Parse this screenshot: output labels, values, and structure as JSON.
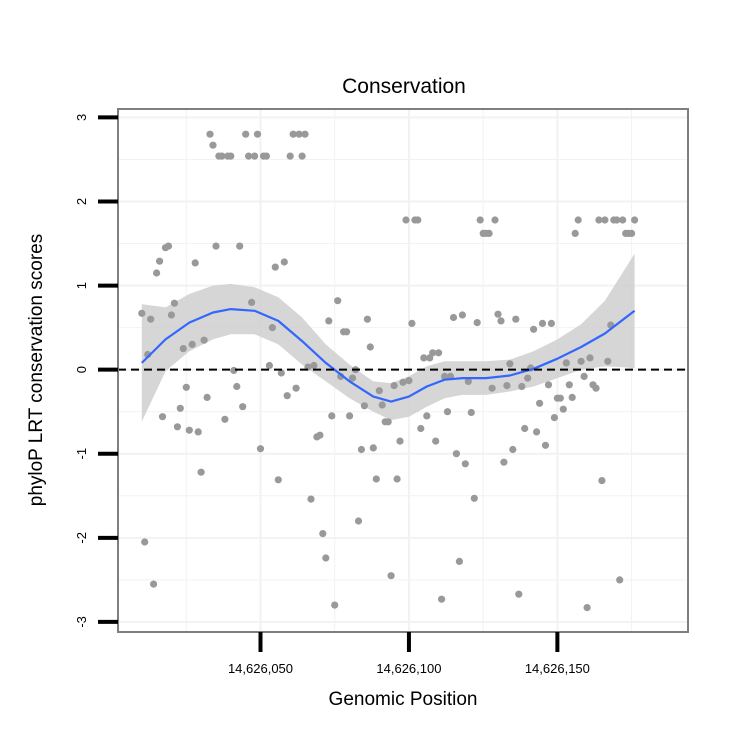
{
  "chart_data": {
    "type": "scatter",
    "title": "Conservation",
    "xlabel": "Genomic Position",
    "ylabel": "phyloP LRT conservation scores",
    "xlim": [
      14626002,
      14626194
    ],
    "ylim": [
      -3.12,
      3.1
    ],
    "x_ticks": [
      14626050,
      14626100,
      14626150
    ],
    "x_tick_labels": [
      "14,626,050",
      "14,626,100",
      "14,626,150"
    ],
    "y_ticks": [
      -3,
      -2,
      -1,
      0,
      1,
      2,
      3
    ],
    "y_tick_labels": [
      "-3",
      "-2",
      "-1",
      "0",
      "1",
      "2",
      "3"
    ],
    "grid": true,
    "reference_line": {
      "y": 0,
      "style": "dashed",
      "color": "#000000"
    },
    "colors": {
      "points": "#999999",
      "smooth_line": "#3366ff",
      "ribbon": "#cccccc",
      "panel_border": "#7f7f7f",
      "grid": "#f2f2f2"
    },
    "points": [
      [
        14626010,
        0.67
      ],
      [
        14626011,
        -2.05
      ],
      [
        14626012,
        0.18
      ],
      [
        14626013,
        0.6
      ],
      [
        14626014,
        -2.55
      ],
      [
        14626015,
        1.15
      ],
      [
        14626016,
        1.29
      ],
      [
        14626017,
        -0.56
      ],
      [
        14626018,
        1.45
      ],
      [
        14626019,
        1.47
      ],
      [
        14626020,
        0.65
      ],
      [
        14626021,
        0.79
      ],
      [
        14626022,
        -0.68
      ],
      [
        14626023,
        -0.46
      ],
      [
        14626024,
        0.25
      ],
      [
        14626025,
        -0.21
      ],
      [
        14626026,
        -0.72
      ],
      [
        14626027,
        0.3
      ],
      [
        14626028,
        1.27
      ],
      [
        14626029,
        -0.74
      ],
      [
        14626030,
        -1.22
      ],
      [
        14626031,
        0.35
      ],
      [
        14626032,
        -0.33
      ],
      [
        14626033,
        2.8
      ],
      [
        14626034,
        2.67
      ],
      [
        14626035,
        1.47
      ],
      [
        14626036,
        2.54
      ],
      [
        14626037,
        2.54
      ],
      [
        14626038,
        -0.59
      ],
      [
        14626039,
        2.54
      ],
      [
        14626040,
        2.54
      ],
      [
        14626041,
        -0.01
      ],
      [
        14626042,
        -0.2
      ],
      [
        14626043,
        1.47
      ],
      [
        14626044,
        -0.44
      ],
      [
        14626045,
        2.8
      ],
      [
        14626046,
        2.54
      ],
      [
        14626047,
        0.8
      ],
      [
        14626048,
        2.54
      ],
      [
        14626049,
        2.8
      ],
      [
        14626050,
        -0.94
      ],
      [
        14626051,
        2.54
      ],
      [
        14626052,
        2.54
      ],
      [
        14626053,
        0.05
      ],
      [
        14626054,
        0.5
      ],
      [
        14626055,
        1.22
      ],
      [
        14626056,
        -1.31
      ],
      [
        14626057,
        -0.04
      ],
      [
        14626058,
        1.28
      ],
      [
        14626059,
        -0.31
      ],
      [
        14626060,
        2.54
      ],
      [
        14626061,
        2.8
      ],
      [
        14626062,
        -0.22
      ],
      [
        14626063,
        2.8
      ],
      [
        14626064,
        2.54
      ],
      [
        14626065,
        2.8
      ],
      [
        14626066,
        0.03
      ],
      [
        14626067,
        -1.54
      ],
      [
        14626068,
        0.05
      ],
      [
        14626069,
        -0.8
      ],
      [
        14626070,
        -0.78
      ],
      [
        14626071,
        -1.95
      ],
      [
        14626072,
        -2.24
      ],
      [
        14626073,
        0.58
      ],
      [
        14626074,
        -0.55
      ],
      [
        14626075,
        -2.8
      ],
      [
        14626076,
        0.82
      ],
      [
        14626077,
        -0.08
      ],
      [
        14626078,
        0.45
      ],
      [
        14626079,
        0.45
      ],
      [
        14626080,
        -0.55
      ],
      [
        14626081,
        -0.1
      ],
      [
        14626082,
        0.0
      ],
      [
        14626083,
        -1.8
      ],
      [
        14626084,
        -0.95
      ],
      [
        14626085,
        -0.43
      ],
      [
        14626086,
        0.6
      ],
      [
        14626087,
        0.27
      ],
      [
        14626088,
        -0.93
      ],
      [
        14626089,
        -1.3
      ],
      [
        14626090,
        -0.25
      ],
      [
        14626091,
        -0.42
      ],
      [
        14626092,
        -0.62
      ],
      [
        14626093,
        -0.62
      ],
      [
        14626094,
        -2.45
      ],
      [
        14626095,
        -0.19
      ],
      [
        14626096,
        -1.3
      ],
      [
        14626097,
        -0.85
      ],
      [
        14626098,
        -0.15
      ],
      [
        14626099,
        1.78
      ],
      [
        14626100,
        -0.13
      ],
      [
        14626101,
        0.55
      ],
      [
        14626102,
        1.78
      ],
      [
        14626103,
        1.78
      ],
      [
        14626104,
        -0.7
      ],
      [
        14626105,
        0.14
      ],
      [
        14626106,
        -0.55
      ],
      [
        14626107,
        0.14
      ],
      [
        14626108,
        0.2
      ],
      [
        14626109,
        -0.85
      ],
      [
        14626110,
        0.2
      ],
      [
        14626111,
        -2.73
      ],
      [
        14626112,
        -0.08
      ],
      [
        14626113,
        -0.5
      ],
      [
        14626114,
        -0.08
      ],
      [
        14626115,
        0.62
      ],
      [
        14626116,
        -1.0
      ],
      [
        14626117,
        -2.28
      ],
      [
        14626118,
        0.65
      ],
      [
        14626119,
        -1.12
      ],
      [
        14626120,
        -0.14
      ],
      [
        14626121,
        -0.51
      ],
      [
        14626122,
        -1.53
      ],
      [
        14626123,
        0.56
      ],
      [
        14626124,
        1.78
      ],
      [
        14626125,
        1.62
      ],
      [
        14626126,
        1.62
      ],
      [
        14626127,
        1.62
      ],
      [
        14626128,
        -0.22
      ],
      [
        14626129,
        1.78
      ],
      [
        14626130,
        0.66
      ],
      [
        14626131,
        0.58
      ],
      [
        14626132,
        -1.1
      ],
      [
        14626133,
        -0.19
      ],
      [
        14626134,
        0.07
      ],
      [
        14626135,
        -0.95
      ],
      [
        14626136,
        0.6
      ],
      [
        14626137,
        -2.67
      ],
      [
        14626138,
        -0.2
      ],
      [
        14626139,
        -0.7
      ],
      [
        14626140,
        -0.1
      ],
      [
        14626141,
        0.02
      ],
      [
        14626142,
        0.48
      ],
      [
        14626143,
        -0.74
      ],
      [
        14626144,
        -0.4
      ],
      [
        14626145,
        0.55
      ],
      [
        14626146,
        -0.9
      ],
      [
        14626147,
        -0.18
      ],
      [
        14626148,
        0.55
      ],
      [
        14626149,
        -0.57
      ],
      [
        14626150,
        -0.34
      ],
      [
        14626151,
        -0.34
      ],
      [
        14626152,
        -0.47
      ],
      [
        14626153,
        0.08
      ],
      [
        14626154,
        -0.18
      ],
      [
        14626155,
        -0.33
      ],
      [
        14626156,
        1.62
      ],
      [
        14626157,
        1.78
      ],
      [
        14626158,
        0.1
      ],
      [
        14626159,
        -0.08
      ],
      [
        14626160,
        -2.83
      ],
      [
        14626161,
        0.14
      ],
      [
        14626162,
        -0.18
      ],
      [
        14626163,
        -0.22
      ],
      [
        14626164,
        1.78
      ],
      [
        14626165,
        -1.32
      ],
      [
        14626166,
        1.78
      ],
      [
        14626167,
        0.1
      ],
      [
        14626168,
        0.53
      ],
      [
        14626169,
        1.78
      ],
      [
        14626170,
        1.78
      ],
      [
        14626171,
        -2.5
      ],
      [
        14626172,
        1.78
      ],
      [
        14626173,
        1.62
      ],
      [
        14626174,
        1.62
      ],
      [
        14626175,
        1.62
      ],
      [
        14626176,
        1.78
      ]
    ],
    "smooth": {
      "x": [
        14626010,
        14626018,
        14626026,
        14626034,
        14626040,
        14626048,
        14626056,
        14626064,
        14626072,
        14626080,
        14626088,
        14626094,
        14626100,
        14626106,
        14626112,
        14626118,
        14626126,
        14626134,
        14626142,
        14626150,
        14626158,
        14626166,
        14626176
      ],
      "y": [
        0.08,
        0.36,
        0.56,
        0.68,
        0.72,
        0.7,
        0.58,
        0.34,
        0.08,
        -0.14,
        -0.32,
        -0.38,
        -0.32,
        -0.2,
        -0.12,
        -0.1,
        -0.1,
        -0.07,
        0.01,
        0.13,
        0.27,
        0.43,
        0.7
      ],
      "lower": [
        -0.62,
        -0.02,
        0.22,
        0.36,
        0.42,
        0.42,
        0.3,
        0.06,
        -0.14,
        -0.34,
        -0.5,
        -0.6,
        -0.56,
        -0.44,
        -0.34,
        -0.3,
        -0.3,
        -0.26,
        -0.2,
        -0.1,
        0.0,
        0.04,
        0.02
      ],
      "upper": [
        0.78,
        0.74,
        0.9,
        1.0,
        1.02,
        0.98,
        0.86,
        0.62,
        0.3,
        0.06,
        -0.14,
        -0.16,
        -0.08,
        0.04,
        0.1,
        0.1,
        0.1,
        0.12,
        0.22,
        0.36,
        0.54,
        0.82,
        1.38
      ]
    }
  }
}
